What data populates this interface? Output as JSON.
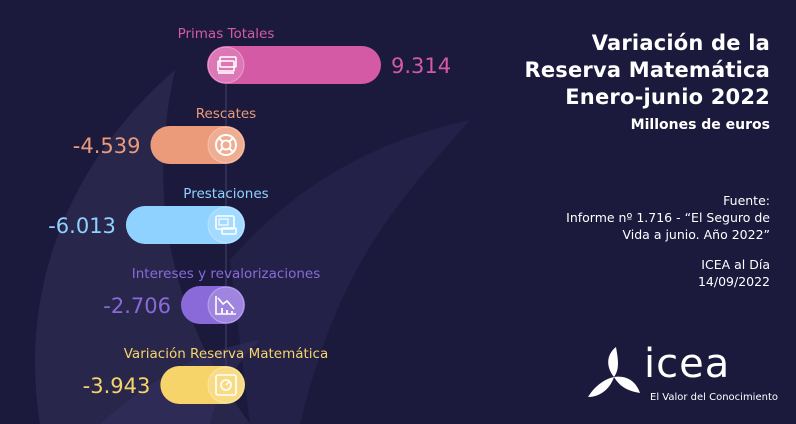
{
  "title_lines": [
    "Variación de la",
    "Reserva Matemática",
    "Enero-junio 2022"
  ],
  "subtitle": "Millones de euros",
  "source": {
    "label": "Fuente:",
    "line1": "Informe nº 1.716 - “El Seguro de",
    "line2": "Vida a junio. Año 2022”"
  },
  "date_block": {
    "line1": "ICEA al Día",
    "line2": "14/09/2022"
  },
  "logo": {
    "name": "icea",
    "tagline": "El Valor del Conocimiento"
  },
  "colors": {
    "background": "#1c1a3c",
    "primas": "#d45aa6",
    "rescates": "#eb9b7a",
    "prestaciones": "#8fd2ff",
    "intereses": "#8a6ad8",
    "variacion": "#f7d46a"
  },
  "chart_data": {
    "type": "bar",
    "orientation": "horizontal",
    "unit": "Millones de euros",
    "categories": [
      "Primas Totales",
      "Rescates",
      "Prestaciones",
      "Intereses y revalorizaciones",
      "Variación Reserva Matemática"
    ],
    "values": [
      9314,
      -4539,
      -6013,
      -2706,
      -3943
    ],
    "value_labels": [
      "9.314",
      "-4.539",
      "-6.013",
      "-2.706",
      "-3.943"
    ],
    "icons": [
      "money-stack-icon",
      "lifebuoy-icon",
      "atm-cash-icon",
      "declining-chart-icon",
      "safe-icon"
    ],
    "series_colors": [
      "#d45aa6",
      "#eb9b7a",
      "#8fd2ff",
      "#8a6ad8",
      "#f7d46a"
    ]
  }
}
